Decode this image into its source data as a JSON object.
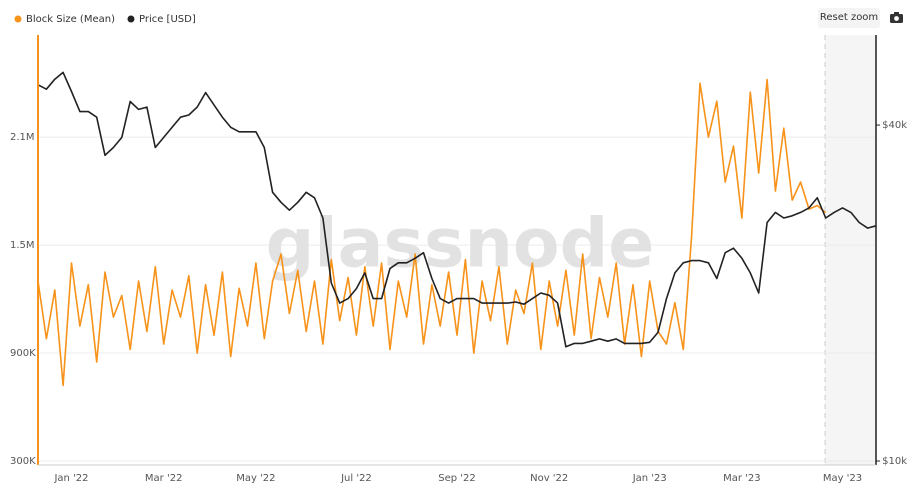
{
  "watermark": "glassnode",
  "reset_button": "Reset zoom",
  "chart_data": {
    "type": "line",
    "categories": [
      null,
      null,
      null,
      null,
      "Jan '22",
      null,
      null,
      null,
      null,
      null,
      null,
      null,
      null,
      null,
      null,
      "Mar '22",
      null,
      null,
      null,
      null,
      null,
      null,
      null,
      null,
      null,
      null,
      "May '22",
      null,
      null,
      null,
      null,
      null,
      null,
      null,
      null,
      null,
      null,
      null,
      "Jul '22",
      null,
      null,
      null,
      null,
      null,
      null,
      null,
      null,
      null,
      null,
      null,
      "Sep '22",
      null,
      null,
      null,
      null,
      null,
      null,
      null,
      null,
      null,
      null,
      "Nov '22",
      null,
      null,
      null,
      null,
      null,
      null,
      null,
      null,
      null,
      null,
      null,
      "Jan '23",
      null,
      null,
      null,
      null,
      null,
      null,
      null,
      null,
      null,
      null,
      "Mar '23",
      null,
      null,
      null,
      null,
      null,
      null,
      null,
      null,
      null,
      null,
      null,
      "May '23",
      null,
      null,
      null,
      null
    ],
    "series": [
      {
        "name": "Block Size (Mean)",
        "color": "#f7931a",
        "axis": "y",
        "values": [
          1300000,
          980000,
          1250000,
          720000,
          1400000,
          1050000,
          1280000,
          850000,
          1350000,
          1100000,
          1220000,
          920000,
          1300000,
          1020000,
          1380000,
          950000,
          1250000,
          1100000,
          1330000,
          900000,
          1280000,
          1000000,
          1350000,
          880000,
          1260000,
          1050000,
          1400000,
          980000,
          1300000,
          1450000,
          1120000,
          1360000,
          1020000,
          1300000,
          950000,
          1420000,
          1080000,
          1320000,
          1000000,
          1380000,
          1050000,
          1400000,
          920000,
          1300000,
          1100000,
          1450000,
          950000,
          1280000,
          1050000,
          1350000,
          1000000,
          1420000,
          900000,
          1300000,
          1080000,
          1380000,
          950000,
          1250000,
          1120000,
          1400000,
          920000,
          1300000,
          1050000,
          1360000,
          1000000,
          1450000,
          980000,
          1320000,
          1100000,
          1400000,
          950000,
          1280000,
          880000,
          1300000,
          1020000,
          950000,
          1180000,
          920000,
          1550000,
          2400000,
          2100000,
          2300000,
          1850000,
          2050000,
          1650000,
          2350000,
          1900000,
          2420000,
          1800000,
          2150000,
          1750000,
          1850000,
          1700000,
          1720000,
          1680000,
          null,
          null,
          null,
          null,
          null,
          null
        ]
      },
      {
        "name": "Price [USD]",
        "color": "#222222",
        "axis": "y2",
        "values": [
          43600,
          43200,
          44100,
          44700,
          43000,
          41200,
          41200,
          40700,
          37300,
          38000,
          38900,
          42100,
          41400,
          41600,
          38000,
          38900,
          39800,
          40700,
          40900,
          41600,
          42900,
          41800,
          40700,
          39800,
          39400,
          39400,
          39400,
          38000,
          34000,
          33100,
          32400,
          33100,
          34000,
          33500,
          31700,
          25900,
          24100,
          24500,
          25400,
          26800,
          24500,
          24500,
          27200,
          27700,
          27700,
          28100,
          28600,
          26300,
          24500,
          24100,
          24500,
          24500,
          24500,
          24100,
          24100,
          24100,
          24100,
          24200,
          24000,
          24500,
          25000,
          24800,
          24100,
          20200,
          20500,
          20500,
          20700,
          20900,
          20700,
          20900,
          20500,
          20500,
          20500,
          20600,
          21500,
          24500,
          26800,
          27700,
          27900,
          27900,
          27700,
          26300,
          28600,
          29000,
          28100,
          26800,
          25000,
          31300,
          32200,
          31700,
          31900,
          32200,
          32600,
          33500,
          31700,
          32200,
          32600,
          32200,
          31300,
          30800,
          31000
        ]
      }
    ],
    "ylim": [
      300000,
      2690000
    ],
    "yticks": [
      {
        "value": 300000,
        "label": "300K"
      },
      {
        "value": 900000,
        "label": "900K"
      },
      {
        "value": 1500000,
        "label": "1.5M"
      },
      {
        "value": 2100000,
        "label": "2.1M"
      }
    ],
    "y2lim": [
      10000,
      48400
    ],
    "y2ticks": [
      {
        "value": 10000,
        "label": "$10k"
      },
      {
        "value": 40000,
        "label": "$40k"
      }
    ],
    "grid": true
  }
}
